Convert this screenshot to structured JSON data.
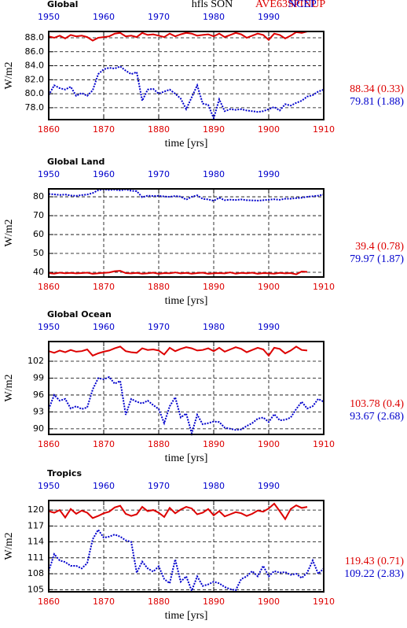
{
  "chart_data": [
    {
      "type": "line",
      "title": "Global",
      "subtitle": "hfls SON",
      "xlabel": "time [yrs]",
      "ylabel": "W/m2",
      "xlim": [
        1860,
        1910
      ],
      "xticks": [
        1860,
        1870,
        1880,
        1890,
        1900,
        1910
      ],
      "x2lim": [
        1950,
        2000
      ],
      "x2ticks": [
        1950,
        1960,
        1970,
        1980,
        1990
      ],
      "ylim": [
        76.3,
        88.9
      ],
      "yticks": [
        {
          "value": 78,
          "label": "78.0"
        },
        {
          "value": 80,
          "label": "80.0"
        },
        {
          "value": 82,
          "label": "82.0"
        },
        {
          "value": 84,
          "label": "84.0"
        },
        {
          "value": 86,
          "label": "86.0"
        },
        {
          "value": 88,
          "label": "88.0"
        }
      ],
      "grid": true,
      "series": [
        {
          "name": "AVE63SPINUP",
          "color": "#dd0000",
          "axis": "x",
          "stat": "88.34 (0.33)",
          "x": [
            1860,
            1861,
            1862,
            1863,
            1864,
            1865,
            1866,
            1867,
            1868,
            1869,
            1870,
            1871,
            1872,
            1873,
            1874,
            1875,
            1876,
            1877,
            1878,
            1879,
            1880,
            1881,
            1882,
            1883,
            1884,
            1885,
            1886,
            1887,
            1888,
            1889,
            1890,
            1891,
            1892,
            1893,
            1894,
            1895,
            1896,
            1897,
            1898,
            1899,
            1900,
            1901,
            1902,
            1903,
            1904,
            1905,
            1906,
            1907
          ],
          "values": [
            88.2,
            88.0,
            88.3,
            87.9,
            88.4,
            88.2,
            88.3,
            88.1,
            87.6,
            88.0,
            88.1,
            88.2,
            88.6,
            88.7,
            88.2,
            88.3,
            88.1,
            88.7,
            88.4,
            88.5,
            88.3,
            88.1,
            88.6,
            88.2,
            88.5,
            88.7,
            88.6,
            88.3,
            88.4,
            88.5,
            88.2,
            88.6,
            88.1,
            88.4,
            88.7,
            88.5,
            88.0,
            88.3,
            88.6,
            88.4,
            87.7,
            88.6,
            88.4,
            87.9,
            88.3,
            88.8,
            88.7,
            88.9
          ]
        },
        {
          "name": "NCEP",
          "color": "#0000cc",
          "axis": "x2",
          "stat": "79.81 (1.88)",
          "x": [
            1950,
            1951,
            1952,
            1953,
            1954,
            1955,
            1956,
            1957,
            1958,
            1959,
            1960,
            1961,
            1962,
            1963,
            1964,
            1965,
            1966,
            1967,
            1968,
            1969,
            1970,
            1971,
            1972,
            1973,
            1974,
            1975,
            1976,
            1977,
            1978,
            1979,
            1980,
            1981,
            1982,
            1983,
            1984,
            1985,
            1986,
            1987,
            1988,
            1989,
            1990,
            1991,
            1992,
            1993,
            1994,
            1995,
            1996,
            1997,
            1998,
            1999,
            2000
          ],
          "values": [
            79.8,
            81.2,
            80.8,
            80.6,
            81.0,
            79.7,
            80.1,
            79.7,
            80.5,
            82.8,
            83.5,
            83.7,
            83.6,
            83.9,
            83.3,
            82.8,
            83.1,
            79.0,
            80.6,
            80.7,
            80.0,
            80.3,
            80.6,
            80.0,
            79.3,
            77.8,
            79.5,
            81.2,
            78.6,
            78.4,
            76.5,
            79.2,
            77.5,
            77.8,
            77.7,
            77.8,
            77.6,
            77.5,
            77.4,
            77.5,
            77.8,
            78.1,
            77.6,
            78.5,
            78.3,
            78.7,
            79.0,
            79.6,
            79.8,
            80.3,
            80.6
          ]
        }
      ]
    },
    {
      "type": "line",
      "title": "Global Land",
      "xlabel": "time [yrs]",
      "ylabel": "W/m2",
      "xlim": [
        1860,
        1910
      ],
      "xticks": [
        1860,
        1870,
        1880,
        1890,
        1900,
        1910
      ],
      "x2lim": [
        1950,
        2000
      ],
      "x2ticks": [
        1950,
        1960,
        1970,
        1980,
        1990
      ],
      "ylim": [
        37.5,
        84.2
      ],
      "yticks": [
        40,
        50,
        60,
        70,
        80
      ],
      "grid": true,
      "series": [
        {
          "color": "#dd0000",
          "axis": "x",
          "stat": "39.4 (0.78)",
          "x": [
            1860,
            1861,
            1862,
            1863,
            1864,
            1865,
            1866,
            1867,
            1868,
            1869,
            1870,
            1871,
            1872,
            1873,
            1874,
            1875,
            1876,
            1877,
            1878,
            1879,
            1880,
            1881,
            1882,
            1883,
            1884,
            1885,
            1886,
            1887,
            1888,
            1889,
            1890,
            1891,
            1892,
            1893,
            1894,
            1895,
            1896,
            1897,
            1898,
            1899,
            1900,
            1901,
            1902,
            1903,
            1904,
            1905,
            1906,
            1907
          ],
          "values": [
            39.6,
            39.3,
            39.8,
            39.5,
            39.7,
            39.4,
            39.6,
            39.8,
            39.2,
            39.5,
            39.7,
            39.9,
            40.6,
            40.8,
            39.6,
            39.4,
            39.7,
            39.3,
            39.5,
            39.8,
            39.2,
            39.6,
            39.5,
            39.9,
            39.4,
            39.7,
            39.3,
            39.6,
            39.8,
            39.2,
            39.5,
            39.6,
            39.4,
            39.9,
            39.3,
            39.7,
            39.5,
            39.8,
            39.2,
            39.6,
            39.5,
            39.3,
            39.7,
            39.4,
            39.6,
            38.9,
            40.4,
            40.2
          ]
        },
        {
          "color": "#0000cc",
          "axis": "x2",
          "stat": "79.97 (1.87)",
          "x": [
            1950,
            1951,
            1952,
            1953,
            1954,
            1955,
            1956,
            1957,
            1958,
            1959,
            1960,
            1961,
            1962,
            1963,
            1964,
            1965,
            1966,
            1967,
            1968,
            1969,
            1970,
            1971,
            1972,
            1973,
            1974,
            1975,
            1976,
            1977,
            1978,
            1979,
            1980,
            1981,
            1982,
            1983,
            1984,
            1985,
            1986,
            1987,
            1988,
            1989,
            1990,
            1991,
            1992,
            1993,
            1994,
            1995,
            1996,
            1997,
            1998,
            1999,
            2000
          ],
          "values": [
            81.5,
            81.3,
            81.0,
            81.2,
            80.7,
            80.5,
            80.9,
            81.2,
            82.0,
            83.5,
            84.0,
            83.6,
            83.8,
            83.4,
            83.9,
            83.2,
            83.0,
            79.8,
            80.6,
            80.4,
            80.5,
            80.2,
            80.0,
            80.4,
            80.1,
            78.5,
            80.0,
            80.8,
            78.9,
            78.6,
            77.9,
            79.5,
            78.2,
            78.5,
            78.3,
            78.6,
            78.2,
            78.1,
            78.0,
            78.2,
            78.5,
            78.7,
            78.4,
            79.0,
            79.0,
            79.3,
            79.5,
            80.0,
            80.3,
            80.6,
            81.2
          ]
        }
      ]
    },
    {
      "type": "line",
      "title": "Global Ocean",
      "xlabel": "time [yrs]",
      "ylabel": "W/m2",
      "xlim": [
        1860,
        1910
      ],
      "xticks": [
        1860,
        1870,
        1880,
        1890,
        1900,
        1910
      ],
      "x2lim": [
        1950,
        2000
      ],
      "x2ticks": [
        1950,
        1960,
        1970,
        1980,
        1990
      ],
      "ylim": [
        89.0,
        105.5
      ],
      "yticks": [
        90,
        93,
        96,
        99,
        102
      ],
      "grid": true,
      "series": [
        {
          "color": "#dd0000",
          "axis": "x",
          "stat": "103.78 (0.4)",
          "x": [
            1860,
            1861,
            1862,
            1863,
            1864,
            1865,
            1866,
            1867,
            1868,
            1869,
            1870,
            1871,
            1872,
            1873,
            1874,
            1875,
            1876,
            1877,
            1878,
            1879,
            1880,
            1881,
            1882,
            1883,
            1884,
            1885,
            1886,
            1887,
            1888,
            1889,
            1890,
            1891,
            1892,
            1893,
            1894,
            1895,
            1896,
            1897,
            1898,
            1899,
            1900,
            1901,
            1902,
            1903,
            1904,
            1905,
            1906,
            1907
          ],
          "values": [
            103.8,
            103.5,
            103.9,
            103.6,
            104.0,
            103.7,
            103.8,
            104.1,
            103.0,
            103.4,
            103.7,
            103.9,
            104.3,
            104.6,
            103.8,
            103.6,
            103.5,
            104.3,
            104.0,
            104.1,
            103.9,
            103.2,
            104.4,
            103.8,
            104.2,
            104.5,
            104.3,
            103.9,
            104.0,
            104.3,
            103.8,
            104.4,
            103.7,
            104.1,
            104.5,
            104.2,
            103.6,
            104.0,
            104.4,
            104.1,
            103.0,
            104.4,
            104.2,
            103.4,
            103.9,
            104.6,
            104.0,
            103.9
          ]
        },
        {
          "color": "#0000cc",
          "axis": "x2",
          "stat": "93.67 (2.68)",
          "x": [
            1950,
            1951,
            1952,
            1953,
            1954,
            1955,
            1956,
            1957,
            1958,
            1959,
            1960,
            1961,
            1962,
            1963,
            1964,
            1965,
            1966,
            1967,
            1968,
            1969,
            1970,
            1971,
            1972,
            1973,
            1974,
            1975,
            1976,
            1977,
            1978,
            1979,
            1980,
            1981,
            1982,
            1983,
            1984,
            1985,
            1986,
            1987,
            1988,
            1989,
            1990,
            1991,
            1992,
            1993,
            1994,
            1995,
            1996,
            1997,
            1998,
            1999,
            2000
          ],
          "values": [
            93.5,
            96,
            95,
            95.3,
            93.6,
            94,
            93.5,
            93.8,
            97,
            99,
            98.8,
            99.2,
            98,
            98.5,
            92.5,
            95.3,
            94.8,
            94.5,
            95,
            94.2,
            93.5,
            91,
            94,
            95.6,
            92,
            92.7,
            89.2,
            92.5,
            90.8,
            91,
            91.3,
            91.2,
            90.2,
            90,
            89.8,
            89.9,
            90.5,
            91,
            91.8,
            92,
            91.2,
            92.6,
            91.5,
            91.6,
            92,
            93.5,
            94.8,
            93.6,
            94,
            95.3,
            94.8
          ]
        }
      ]
    },
    {
      "type": "line",
      "title": "Tropics",
      "xlabel": "time [yrs]",
      "ylabel": "W/m2",
      "xlim": [
        1860,
        1910
      ],
      "xticks": [
        1860,
        1870,
        1880,
        1890,
        1900,
        1910
      ],
      "x2lim": [
        1950,
        2000
      ],
      "x2ticks": [
        1950,
        1960,
        1970,
        1980,
        1990
      ],
      "ylim": [
        104.6,
        121.8
      ],
      "yticks": [
        105,
        108,
        111,
        114,
        117,
        120
      ],
      "grid": true,
      "series": [
        {
          "color": "#dd0000",
          "axis": "x",
          "stat": "119.43 (0.71)",
          "x": [
            1860,
            1861,
            1862,
            1863,
            1864,
            1865,
            1866,
            1867,
            1868,
            1869,
            1870,
            1871,
            1872,
            1873,
            1874,
            1875,
            1876,
            1877,
            1878,
            1879,
            1880,
            1881,
            1882,
            1883,
            1884,
            1885,
            1886,
            1887,
            1888,
            1889,
            1890,
            1891,
            1892,
            1893,
            1894,
            1895,
            1896,
            1897,
            1898,
            1899,
            1900,
            1901,
            1902,
            1903,
            1904,
            1905,
            1906,
            1907
          ],
          "values": [
            119.8,
            119.5,
            120.0,
            118.6,
            120.2,
            119.3,
            119.9,
            119.5,
            118.5,
            118.9,
            119.4,
            119.7,
            120.5,
            120.8,
            119.3,
            118.9,
            119.2,
            120.6,
            119.8,
            120.0,
            119.5,
            118.7,
            120.4,
            119.4,
            120.1,
            120.6,
            120.3,
            119.2,
            119.5,
            120.2,
            119.0,
            119.8,
            118.8,
            119.2,
            119.6,
            119.4,
            118.9,
            119.3,
            119.9,
            119.7,
            120.3,
            121.2,
            119.8,
            118.3,
            120.2,
            120.9,
            120.4,
            120.6
          ]
        },
        {
          "color": "#0000cc",
          "axis": "x2",
          "stat": "109.22 (2.83)",
          "x": [
            1950,
            1951,
            1952,
            1953,
            1954,
            1955,
            1956,
            1957,
            1958,
            1959,
            1960,
            1961,
            1962,
            1963,
            1964,
            1965,
            1966,
            1967,
            1968,
            1969,
            1970,
            1971,
            1972,
            1973,
            1974,
            1975,
            1976,
            1977,
            1978,
            1979,
            1980,
            1981,
            1982,
            1983,
            1984,
            1985,
            1986,
            1987,
            1988,
            1989,
            1990,
            1991,
            1992,
            1993,
            1994,
            1995,
            1996,
            1997,
            1998,
            1999,
            2000
          ],
          "values": [
            108.5,
            111.7,
            110.5,
            110.2,
            109.5,
            109.5,
            109.0,
            110.0,
            114.5,
            116.3,
            114.8,
            115.0,
            115.4,
            115.0,
            114.3,
            114.0,
            108.2,
            110.3,
            109.0,
            108.4,
            109.4,
            107.0,
            106.2,
            110.7,
            106.5,
            107.5,
            104.8,
            107.5,
            105.7,
            106.0,
            106.5,
            106.2,
            105.5,
            105.1,
            104.9,
            107.0,
            107.5,
            108.5,
            107.5,
            109.5,
            107.5,
            108.5,
            108.2,
            108.3,
            107.8,
            108.0,
            107.2,
            108.2,
            110.5,
            108.0,
            109.0
          ]
        }
      ]
    }
  ]
}
